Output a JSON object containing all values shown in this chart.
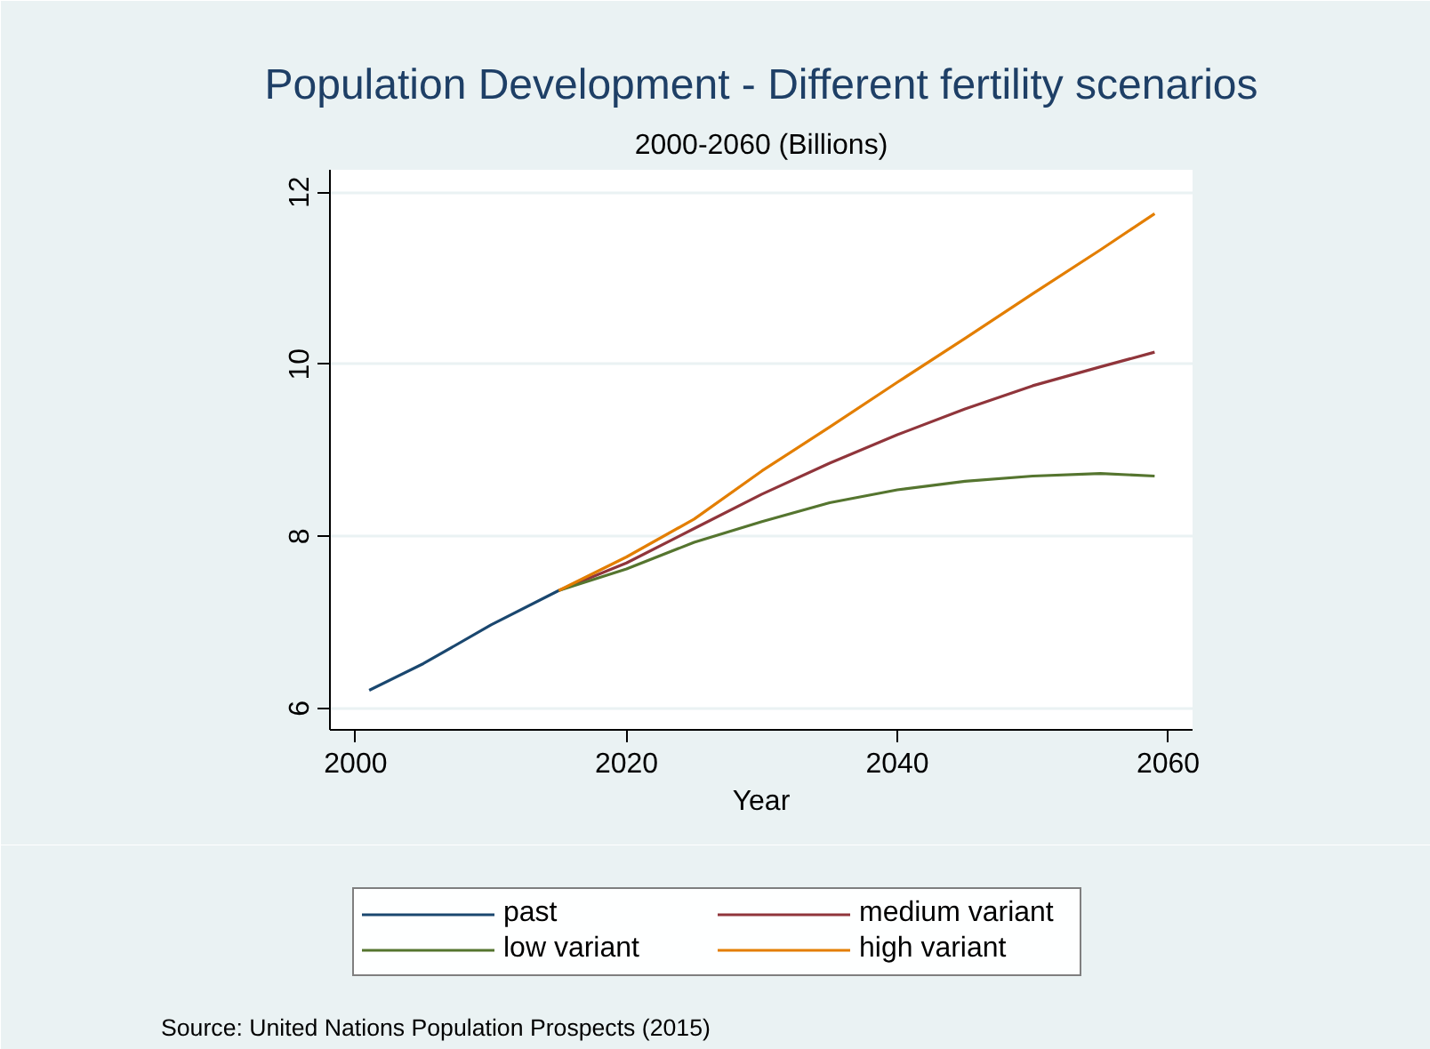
{
  "chart_data": {
    "type": "line",
    "title": "Population Development - Different fertility scenarios",
    "subtitle": "2000-2060 (Billions)",
    "xlabel": "Year",
    "annotations": [
      "Source: United Nations Population Prospects (2015)"
    ],
    "series": [
      {
        "name": "past",
        "color": "#1a476f",
        "x": [
          2001,
          2005,
          2010,
          2015
        ],
        "values": [
          6.21,
          6.52,
          6.97,
          7.37
        ]
      },
      {
        "name": "medium variant",
        "color": "#90353b",
        "x": [
          2015,
          2020,
          2025,
          2030,
          2035,
          2040,
          2045,
          2050,
          2055,
          2059
        ],
        "values": [
          7.37,
          7.69,
          8.09,
          8.49,
          8.85,
          9.18,
          9.48,
          9.75,
          9.97,
          10.14
        ]
      },
      {
        "name": "low variant",
        "color": "#55752f",
        "x": [
          2015,
          2020,
          2025,
          2030,
          2035,
          2040,
          2045,
          2050,
          2055,
          2059
        ],
        "values": [
          7.37,
          7.62,
          7.93,
          8.17,
          8.39,
          8.54,
          8.64,
          8.7,
          8.73,
          8.7
        ]
      },
      {
        "name": "high variant",
        "color": "#e37e00",
        "x": [
          2015,
          2020,
          2025,
          2030,
          2035,
          2040,
          2045,
          2050,
          2055,
          2059
        ],
        "values": [
          7.37,
          7.76,
          8.2,
          8.76,
          9.27,
          9.79,
          10.3,
          10.82,
          11.33,
          11.75
        ]
      }
    ],
    "xlim": [
      1998.1,
      2061.8
    ],
    "xticks": [
      2000,
      2020,
      2040,
      2060
    ],
    "ylim": [
      5.75,
      12.26
    ],
    "yticks": [
      6,
      8,
      10,
      12
    ],
    "grid": "y",
    "legend": "bottom",
    "marker": "none",
    "line_style": "solid"
  }
}
